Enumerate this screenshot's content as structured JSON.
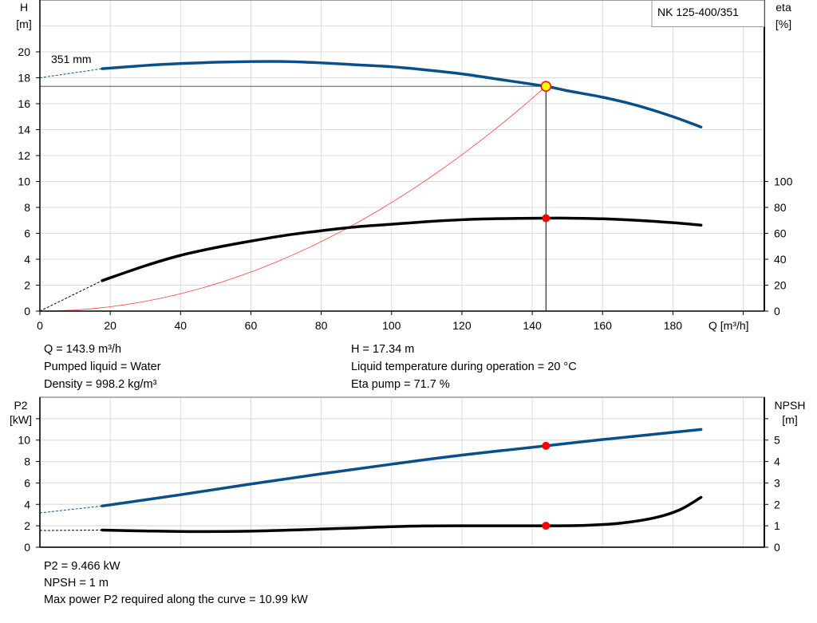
{
  "chart_data": [
    {
      "type": "line",
      "title": "NK 125-400/351",
      "xlabel": "Q [m³/h]",
      "ylabel": "H\n[m]",
      "y2label": "eta\n[%]",
      "xlim": [
        0,
        206
      ],
      "ylim": [
        0,
        24
      ],
      "y2lim": [
        0,
        240
      ],
      "xticks": [
        0,
        20,
        40,
        60,
        80,
        100,
        120,
        140,
        160,
        180
      ],
      "yticks": [
        0,
        2,
        4,
        6,
        8,
        10,
        12,
        14,
        16,
        18,
        20
      ],
      "y2ticks": [
        0,
        20,
        40,
        60,
        80,
        100
      ],
      "grid": true,
      "curve_label": "351 mm",
      "series": [
        {
          "key": "H",
          "axis": "left",
          "color": "#0b4f8a",
          "x": [
            17.7,
            30,
            40,
            50,
            60,
            70,
            80,
            90,
            100,
            110,
            120,
            130,
            143.9,
            150,
            160,
            170,
            180,
            188
          ],
          "y": [
            18.7,
            18.95,
            19.1,
            19.2,
            19.25,
            19.25,
            19.15,
            19.0,
            18.85,
            18.6,
            18.3,
            17.9,
            17.34,
            17.0,
            16.5,
            15.85,
            15.0,
            14.2
          ],
          "extrapolated": {
            "x": [
              0,
              17.7
            ],
            "y": [
              18.0,
              18.7
            ]
          }
        },
        {
          "key": "eta",
          "axis": "right",
          "color": "#000000",
          "x": [
            17.7,
            30,
            40,
            50,
            60,
            70,
            80,
            90,
            100,
            110,
            120,
            130,
            143.9,
            150,
            160,
            170,
            180,
            188
          ],
          "y": [
            23.5,
            35,
            43,
            49,
            54,
            58.5,
            62,
            65,
            67,
            69,
            70.5,
            71.3,
            71.7,
            71.7,
            71.2,
            70,
            68.2,
            66.3
          ],
          "extrapolated": {
            "x": [
              0,
              17.7
            ],
            "y": [
              0,
              23.5
            ]
          }
        },
        {
          "key": "system",
          "axis": "left",
          "color": "#ff4040",
          "type": "parabola_through_origin",
          "x_end": 143.9,
          "y_end": 17.34
        }
      ],
      "operating_point": {
        "Q": 143.9,
        "H": 17.34,
        "eta": 71.7
      }
    },
    {
      "type": "line",
      "ylabel": "P2\n[kW]",
      "y2label": "NPSH\n[m]",
      "xlim": [
        0,
        206
      ],
      "ylim": [
        0,
        14
      ],
      "y2lim": [
        0,
        7
      ],
      "yticks": [
        0,
        2,
        4,
        6,
        8,
        10
      ],
      "y2ticks": [
        0,
        1,
        2,
        3,
        4,
        5
      ],
      "grid": true,
      "series": [
        {
          "key": "P2",
          "axis": "left",
          "color": "#0b4f8a",
          "x": [
            17.7,
            40,
            60,
            80,
            100,
            120,
            143.9,
            160,
            188
          ],
          "y": [
            3.85,
            4.9,
            5.9,
            6.85,
            7.75,
            8.6,
            9.466,
            10.05,
            10.99
          ],
          "extrapolated": {
            "x": [
              0,
              17.7
            ],
            "y": [
              3.2,
              3.85
            ]
          }
        },
        {
          "key": "NPSH",
          "axis": "right",
          "color": "#000000",
          "x": [
            17.7,
            30,
            45,
            60,
            75,
            90,
            105,
            120,
            135,
            143.9,
            155,
            165,
            175,
            182,
            188
          ],
          "y": [
            0.8,
            0.76,
            0.73,
            0.75,
            0.82,
            0.9,
            0.98,
            1.0,
            1.0,
            1.0,
            1.02,
            1.12,
            1.38,
            1.75,
            2.33
          ],
          "extrapolated": {
            "x": [
              0,
              17.7
            ],
            "y": [
              0.78,
              0.8
            ]
          }
        }
      ],
      "operating_point": {
        "Q": 143.9,
        "P2": 9.466,
        "NPSH": 1
      }
    }
  ],
  "info_top": {
    "q": "Q = 143.9 m³/h",
    "liquid": "Pumped liquid = Water",
    "density": "Density = 998.2 kg/m³",
    "h": "H = 17.34 m",
    "temp": "Liquid temperature during operation = 20 °C",
    "eta": "Eta pump = 71.7 %"
  },
  "info_bottom": {
    "p2": "P2 = 9.466 kW",
    "npsh": "NPSH = 1 m",
    "max_power": "Max power P2 required along the curve = 10.99 kW"
  }
}
